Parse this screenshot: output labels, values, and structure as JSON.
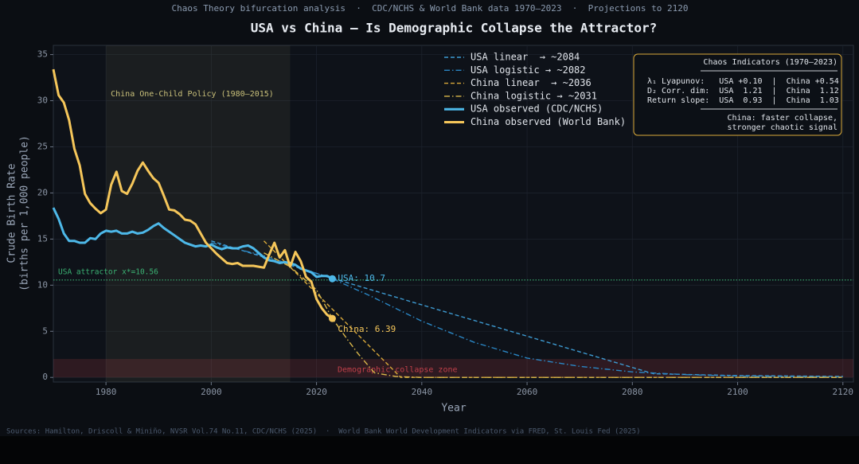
{
  "chart_data": {
    "type": "line",
    "subtitle": "Chaos Theory bifurcation analysis  ·  CDC/NCHS & World Bank data 1970–2023  ·  Projections to 2120",
    "title": "USA vs China — Is Demographic Collapse the Attractor?",
    "x_label": "Year",
    "y_label": [
      "Crude Birth Rate",
      "(births per 1,000 people)"
    ],
    "source": "Sources: Hamilton, Driscoll & Miniño, NVSR Vol.74 No.11, CDC/NCHS (2025)  ·  World Bank World Development Indicators via FRED, St. Louis Fed (2025)",
    "xlim": [
      1970,
      2122
    ],
    "ylim": [
      -0.5,
      36
    ],
    "xticks": [
      1980,
      2000,
      2020,
      2040,
      2060,
      2080,
      2100,
      2120
    ],
    "yticks": [
      0,
      5,
      10,
      15,
      20,
      25,
      30,
      35
    ],
    "grid": true,
    "legend": "top-center",
    "series": [
      {
        "name": "USA linear  → ~2084",
        "color": "#3d9ad1",
        "style": "dashed",
        "width": 1.4,
        "x": [
          2000,
          2023,
          2084,
          2100,
          2120
        ],
        "values": [
          14.8,
          10.75,
          0.4,
          0.2,
          0.1
        ]
      },
      {
        "name": "USA logistic → ~2082",
        "color": "#2a86c4",
        "style": "dashdot",
        "width": 1.4,
        "x": [
          2000,
          2010,
          2023,
          2030,
          2040,
          2050,
          2060,
          2070,
          2080,
          2090,
          2100,
          2120
        ],
        "values": [
          14.6,
          13.2,
          10.7,
          8.9,
          6.1,
          3.8,
          2.1,
          1.2,
          0.6,
          0.3,
          0.15,
          0.05
        ]
      },
      {
        "name": "China linear  → ~2036",
        "color": "#d9a93a",
        "style": "dashed",
        "width": 1.4,
        "x": [
          2010,
          2023,
          2036,
          2050,
          2120
        ],
        "values": [
          14.8,
          7.4,
          0,
          0,
          0
        ]
      },
      {
        "name": "China logistic → ~2031",
        "color": "#d9b64a",
        "style": "dashdot",
        "width": 1.4,
        "x": [
          2010,
          2015,
          2020,
          2023,
          2026,
          2028,
          2031,
          2035,
          2040,
          2120
        ],
        "values": [
          13.5,
          12.0,
          9.5,
          6.4,
          4.0,
          2.5,
          0.5,
          0.1,
          0,
          0
        ]
      },
      {
        "name": "USA observed (CDC/NCHS)",
        "color": "#4db8e8",
        "style": "solid",
        "width": 3,
        "x": [
          1970,
          1971,
          1972,
          1973,
          1974,
          1975,
          1976,
          1977,
          1978,
          1979,
          1980,
          1981,
          1982,
          1983,
          1984,
          1985,
          1986,
          1987,
          1988,
          1989,
          1990,
          1991,
          1992,
          1993,
          1994,
          1995,
          1996,
          1997,
          1998,
          1999,
          2000,
          2001,
          2002,
          2003,
          2004,
          2005,
          2006,
          2007,
          2008,
          2009,
          2010,
          2011,
          2012,
          2013,
          2014,
          2015,
          2016,
          2017,
          2018,
          2019,
          2020,
          2021,
          2022,
          2023
        ],
        "values": [
          18.4,
          17.2,
          15.6,
          14.8,
          14.8,
          14.6,
          14.6,
          15.1,
          15.0,
          15.6,
          15.9,
          15.8,
          15.9,
          15.6,
          15.6,
          15.8,
          15.6,
          15.7,
          16.0,
          16.4,
          16.7,
          16.2,
          15.8,
          15.4,
          15.0,
          14.6,
          14.4,
          14.2,
          14.3,
          14.2,
          14.4,
          14.1,
          13.9,
          14.1,
          14.0,
          14.0,
          14.2,
          14.3,
          14.0,
          13.5,
          13.0,
          12.7,
          12.6,
          12.4,
          12.5,
          12.4,
          12.2,
          11.8,
          11.6,
          11.4,
          10.9,
          11.0,
          11.0,
          10.7
        ],
        "end_label": "USA: 10.7"
      },
      {
        "name": "China observed (World Bank)",
        "color": "#f5c65a",
        "style": "solid",
        "width": 3,
        "x": [
          1970,
          1971,
          1972,
          1973,
          1974,
          1975,
          1976,
          1977,
          1978,
          1979,
          1980,
          1981,
          1982,
          1983,
          1984,
          1985,
          1986,
          1987,
          1988,
          1989,
          1990,
          1991,
          1992,
          1993,
          1994,
          1995,
          1996,
          1997,
          1998,
          1999,
          2000,
          2001,
          2002,
          2003,
          2004,
          2005,
          2006,
          2007,
          2008,
          2009,
          2010,
          2011,
          2012,
          2013,
          2014,
          2015,
          2016,
          2017,
          2018,
          2019,
          2020,
          2021,
          2022,
          2023
        ],
        "values": [
          33.4,
          30.6,
          29.8,
          27.9,
          24.8,
          23.0,
          19.9,
          18.9,
          18.3,
          17.8,
          18.2,
          20.9,
          22.3,
          20.2,
          19.9,
          21.0,
          22.4,
          23.3,
          22.4,
          21.6,
          21.1,
          19.7,
          18.2,
          18.1,
          17.7,
          17.1,
          17.0,
          16.6,
          15.6,
          14.6,
          14.0,
          13.4,
          12.9,
          12.4,
          12.3,
          12.4,
          12.1,
          12.1,
          12.1,
          12.0,
          11.9,
          13.3,
          14.6,
          13.0,
          13.8,
          12.0,
          13.6,
          12.6,
          10.9,
          10.4,
          8.5,
          7.5,
          6.8,
          6.39
        ],
        "end_label": "China: 6.39"
      }
    ],
    "spans": [
      {
        "x": [
          1980,
          2015
        ],
        "label": "China One-Child Policy (1980–2015)",
        "color": "#c9c07a"
      }
    ],
    "ybands": [
      {
        "y": [
          0,
          2
        ],
        "label": "Demographic collapse zone",
        "color": "#c0404a"
      }
    ],
    "hlines": [
      {
        "y": 10.56,
        "label": "USA attractor x*=10.56",
        "color": "#3bb273"
      }
    ],
    "info_box": {
      "title": "Chaos Indicators (1970–2023)",
      "rows": [
        "λ₁ Lyapunov:   USA +0.10  |  China +0.54",
        "D₂ Corr. dim:  USA  1.21  |  China  1.12",
        "Return slope:  USA  0.93  |  China  1.03"
      ],
      "note": [
        "China: faster collapse,",
        "stronger chaotic signal"
      ]
    }
  }
}
